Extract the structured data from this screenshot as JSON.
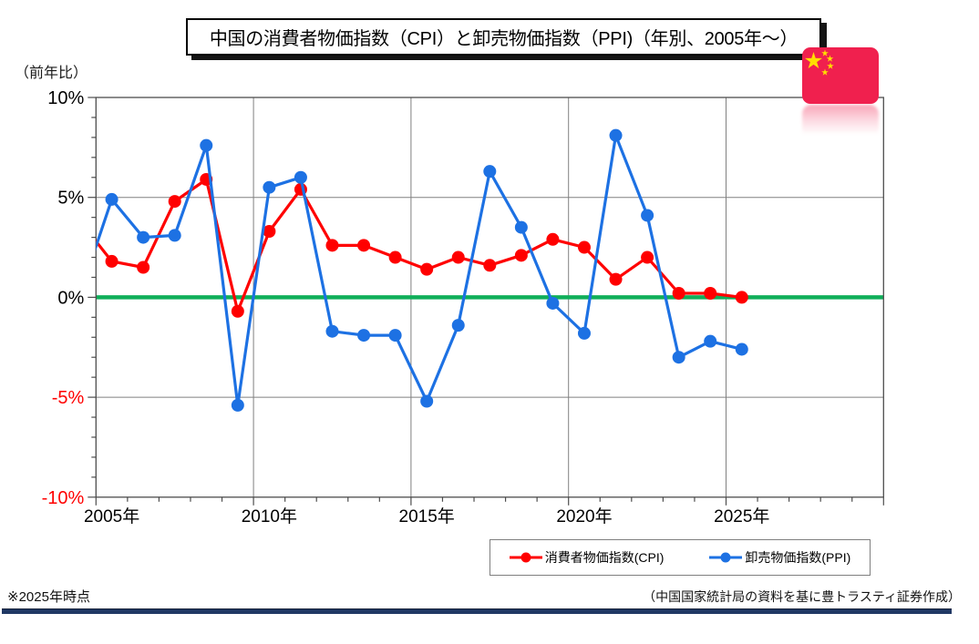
{
  "header": {
    "title": "中国の消費者物価指数（CPI）と卸売物価指数（PPI)（年別、2005年～）",
    "unit_label": "（前年比）"
  },
  "chart_data": {
    "type": "line",
    "title": "中国の消費者物価指数（CPI）と卸売物価指数（PPI)（年別、2005年～）",
    "ylabel": "（前年比）",
    "ylim": [
      -10,
      10
    ],
    "y_major_ticks": [
      {
        "value": 10,
        "label": "10%",
        "color": "#000000"
      },
      {
        "value": 5,
        "label": "5%",
        "color": "#000000"
      },
      {
        "value": 0,
        "label": "0%",
        "color": "#000000"
      },
      {
        "value": -5,
        "label": "-5%",
        "color": "#ff0000"
      },
      {
        "value": -10,
        "label": "-10%",
        "color": "#ff0000"
      }
    ],
    "x_category_range": [
      2005,
      2029
    ],
    "x_major_ticks": [
      {
        "year": 2005,
        "label": "2005年"
      },
      {
        "year": 2010,
        "label": "2010年"
      },
      {
        "year": 2015,
        "label": "2015年"
      },
      {
        "year": 2020,
        "label": "2020年"
      },
      {
        "year": 2025,
        "label": "2025年"
      }
    ],
    "years": [
      2005,
      2006,
      2007,
      2008,
      2009,
      2010,
      2011,
      2012,
      2013,
      2014,
      2015,
      2016,
      2017,
      2018,
      2019,
      2020,
      2021,
      2022,
      2023,
      2024,
      2025
    ],
    "series": [
      {
        "id": "cpi",
        "name": "消費者物価指数(CPI)",
        "color": "#ff0000",
        "values": [
          1.8,
          1.5,
          4.8,
          5.9,
          -0.7,
          3.3,
          5.4,
          2.6,
          2.6,
          2.0,
          1.4,
          2.0,
          1.6,
          2.1,
          2.9,
          2.5,
          0.9,
          2.0,
          0.2,
          0.2,
          0.0
        ],
        "pre2005_clipped_value": 3.8
      },
      {
        "id": "ppi",
        "name": "卸売物価指数(PPI)",
        "color": "#1d71e3",
        "values": [
          4.9,
          3.0,
          3.1,
          7.6,
          -5.4,
          5.5,
          6.0,
          -1.7,
          -1.9,
          -1.9,
          -5.2,
          -1.4,
          6.3,
          3.5,
          -0.3,
          -1.8,
          8.1,
          4.1,
          -3.0,
          -2.2,
          -2.6
        ],
        "pre2005_clipped_value": 0.2
      }
    ],
    "zero_line_color": "#10af5a",
    "gridline_color": "#808080",
    "frame_color": "#4d4d4d",
    "grid": true,
    "legend_position": "bottom"
  },
  "legend": {
    "items": [
      {
        "label": "消費者物価指数(CPI)",
        "color": "#ff0000"
      },
      {
        "label": "卸売物価指数(PPI)",
        "color": "#1d71e3"
      }
    ]
  },
  "flag": {
    "name": "china-flag",
    "red": "#f0204e",
    "yellow": "#ffde00"
  },
  "footer": {
    "note": "※2025年時点",
    "source": "（中国国家統計局の資料を基に豊トラスティ証券作成）",
    "rule_color": "#203864"
  }
}
